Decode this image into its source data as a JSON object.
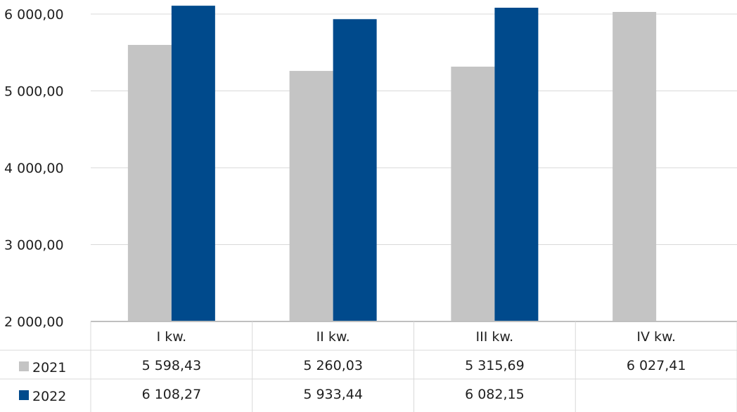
{
  "chart_data": {
    "type": "bar",
    "categories": [
      "I kw.",
      "II kw.",
      "III kw.",
      "IV kw."
    ],
    "series": [
      {
        "name": "2021",
        "values": [
          5598.43,
          5260.03,
          5315.69,
          6027.41
        ],
        "labels": [
          "5 598,43",
          "5 260,03",
          "5 315,69",
          "6 027,41"
        ],
        "color": "#c4c4c4"
      },
      {
        "name": "2022",
        "values": [
          6108.27,
          5933.44,
          6082.15,
          null
        ],
        "labels": [
          "6 108,27",
          "5 933,44",
          "6 082,15",
          ""
        ],
        "color": "#004a8c"
      }
    ],
    "yticks": [
      "6 000,00",
      "5 000,00",
      "4 000,00",
      "3 000,00",
      "2 000,00"
    ],
    "ylim": [
      2000,
      6000
    ],
    "grid": true,
    "legend": "data-table-left",
    "title": "",
    "xlabel": "",
    "ylabel": ""
  },
  "colors": {
    "grid": "#d9d9d9",
    "axis": "#bfbfbf",
    "text": "#1f1f1f"
  }
}
